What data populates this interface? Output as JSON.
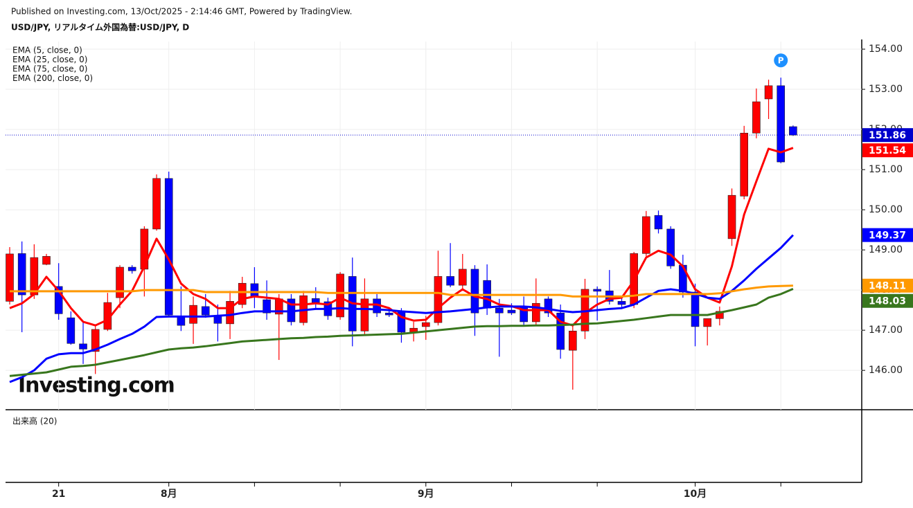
{
  "chart_data": {
    "type": "candlestick",
    "title": "USD/JPY, リアルタイム外国為替:USD/JPY, D",
    "subtitle": "Published on Investing.com, 13/Oct/2025 - 2:14:46 GMT, Powered by TradingView.",
    "volume_label": "出来高 (20)",
    "logo": "Investing.com",
    "annotations": [
      "P"
    ],
    "categories": [
      null,
      null,
      null,
      null,
      "21",
      null,
      null,
      null,
      null,
      null,
      null,
      null,
      null,
      "8月",
      null,
      null,
      null,
      null,
      null,
      null,
      null,
      null,
      null,
      null,
      null,
      null,
      null,
      null,
      null,
      null,
      null,
      null,
      null,
      null,
      "9月",
      null,
      null,
      null,
      null,
      null,
      null,
      null,
      null,
      null,
      null,
      null,
      null,
      null,
      null,
      null,
      null,
      null,
      null,
      null,
      null,
      null,
      "10月",
      null,
      null,
      null,
      null,
      null,
      null,
      null,
      null
    ],
    "open": [
      147.72,
      148.91,
      147.88,
      148.64,
      148.09,
      147.31,
      146.66,
      146.47,
      147.02,
      147.81,
      148.57,
      148.52,
      149.52,
      150.78,
      147.34,
      147.17,
      147.59,
      147.36,
      147.16,
      147.64,
      148.16,
      147.76,
      147.4,
      147.78,
      147.19,
      147.79,
      147.71,
      147.33,
      148.34,
      146.98,
      147.78,
      147.43,
      147.47,
      146.95,
      147.09,
      147.19,
      148.34,
      148.12,
      148.52,
      148.24,
      147.55,
      147.5,
      147.59,
      147.21,
      147.78,
      147.43,
      146.5,
      146.98,
      148.02,
      147.98,
      147.72,
      147.64,
      148.91,
      149.86,
      149.52,
      148.62,
      147.95,
      147.09,
      147.29,
      149.28,
      150.34,
      151.91,
      152.76,
      153.09,
      152.07
    ],
    "high": [
      149.07,
      149.21,
      149.14,
      148.9,
      148.67,
      147.47,
      147.21,
      147.12,
      147.93,
      148.62,
      148.62,
      149.59,
      150.88,
      150.95,
      148.09,
      147.84,
      147.9,
      147.64,
      147.98,
      148.33,
      148.57,
      148.24,
      147.9,
      147.9,
      147.98,
      148.07,
      147.81,
      148.45,
      148.81,
      148.29,
      147.9,
      147.52,
      147.55,
      147.21,
      147.36,
      148.98,
      149.17,
      148.9,
      148.62,
      148.64,
      147.78,
      147.67,
      147.84,
      148.29,
      147.84,
      147.64,
      147.12,
      148.28,
      148.09,
      148.5,
      147.84,
      148.95,
      149.97,
      149.98,
      149.59,
      148.88,
      148.16,
      147.26,
      147.59,
      150.53,
      152.09,
      153.02,
      153.24,
      153.29,
      152.1
    ],
    "low": [
      147.64,
      146.95,
      147.78,
      148.62,
      147.26,
      146.64,
      146.16,
      145.91,
      146.98,
      147.55,
      148.41,
      147.84,
      149.48,
      147.33,
      146.98,
      146.66,
      147.31,
      146.72,
      146.78,
      147.55,
      147.55,
      147.26,
      146.26,
      147.12,
      147.12,
      147.55,
      147.26,
      147.26,
      146.6,
      146.86,
      147.33,
      147.33,
      146.69,
      146.72,
      146.76,
      147.12,
      148.07,
      147.98,
      146.86,
      147.38,
      146.34,
      147.38,
      147.12,
      147.12,
      147.33,
      146.29,
      145.52,
      146.78,
      147.24,
      147.64,
      147.55,
      147.55,
      148.84,
      149.41,
      148.53,
      147.81,
      146.6,
      146.62,
      147.12,
      149.1,
      150.26,
      151.78,
      152.26,
      151.16,
      151.84
    ],
    "close": [
      148.9,
      147.88,
      148.81,
      148.84,
      147.41,
      146.67,
      146.53,
      147.02,
      147.69,
      148.57,
      148.48,
      149.52,
      150.78,
      147.38,
      147.12,
      147.62,
      147.38,
      147.17,
      147.72,
      148.17,
      147.84,
      147.43,
      147.78,
      147.21,
      147.86,
      147.69,
      147.36,
      148.4,
      146.98,
      147.78,
      147.43,
      147.38,
      146.95,
      147.05,
      147.19,
      148.34,
      148.12,
      148.52,
      147.43,
      147.55,
      147.43,
      147.43,
      147.21,
      147.67,
      147.43,
      146.52,
      146.98,
      148.02,
      147.97,
      147.72,
      147.64,
      148.91,
      149.83,
      149.52,
      148.6,
      147.95,
      147.09,
      147.29,
      147.47,
      150.36,
      151.91,
      152.69,
      153.09,
      151.19,
      151.86
    ],
    "up_color": "#ff0000",
    "down_color": "#0000ff",
    "series": [
      {
        "name": "EMA (5, close, 0)",
        "color": "#ff0000",
        "values": [
          147.55,
          147.67,
          147.9,
          148.33,
          147.98,
          147.55,
          147.21,
          147.12,
          147.26,
          147.64,
          147.98,
          148.59,
          149.28,
          148.76,
          148.16,
          147.9,
          147.78,
          147.55,
          147.55,
          147.78,
          147.84,
          147.81,
          147.78,
          147.64,
          147.64,
          147.67,
          147.64,
          147.81,
          147.67,
          147.64,
          147.64,
          147.55,
          147.33,
          147.24,
          147.26,
          147.55,
          147.81,
          148.02,
          147.84,
          147.78,
          147.64,
          147.6,
          147.5,
          147.5,
          147.5,
          147.21,
          147.12,
          147.43,
          147.64,
          147.78,
          147.81,
          148.24,
          148.81,
          148.98,
          148.88,
          148.59,
          148.02,
          147.81,
          147.69,
          148.59,
          149.88,
          150.71,
          151.52,
          151.43,
          151.54
        ]
      },
      {
        "name": "EMA (25, close, 0)",
        "color": "#0000ff",
        "values": [
          145.71,
          145.83,
          146.0,
          146.29,
          146.4,
          146.43,
          146.43,
          146.52,
          146.64,
          146.78,
          146.91,
          147.09,
          147.33,
          147.34,
          147.34,
          147.34,
          147.34,
          147.36,
          147.38,
          147.43,
          147.47,
          147.47,
          147.47,
          147.47,
          147.5,
          147.53,
          147.53,
          147.55,
          147.53,
          147.53,
          147.52,
          147.5,
          147.47,
          147.45,
          147.43,
          147.45,
          147.47,
          147.5,
          147.53,
          147.57,
          147.59,
          147.59,
          147.59,
          147.57,
          147.53,
          147.48,
          147.45,
          147.47,
          147.5,
          147.53,
          147.55,
          147.64,
          147.81,
          147.98,
          148.02,
          147.98,
          147.91,
          147.81,
          147.78,
          147.98,
          148.24,
          148.53,
          148.79,
          149.05,
          149.37
        ]
      },
      {
        "name": "EMA (75, close, 0)",
        "color": "#ff9900",
        "values": [
          147.97,
          147.97,
          147.97,
          147.97,
          147.97,
          147.97,
          147.97,
          147.97,
          147.97,
          147.97,
          147.97,
          148.0,
          148.0,
          148.0,
          148.0,
          148.0,
          147.95,
          147.95,
          147.95,
          147.95,
          147.95,
          147.95,
          147.95,
          147.95,
          147.95,
          147.95,
          147.93,
          147.93,
          147.93,
          147.93,
          147.93,
          147.93,
          147.93,
          147.93,
          147.93,
          147.93,
          147.88,
          147.88,
          147.88,
          147.88,
          147.88,
          147.88,
          147.88,
          147.88,
          147.88,
          147.88,
          147.84,
          147.84,
          147.84,
          147.84,
          147.84,
          147.86,
          147.9,
          147.9,
          147.9,
          147.9,
          147.9,
          147.9,
          147.92,
          147.97,
          148.02,
          148.06,
          148.09,
          148.1,
          148.11
        ]
      },
      {
        "name": "EMA (200, close, 0)",
        "color": "#38761d",
        "values": [
          145.86,
          145.89,
          145.92,
          145.95,
          146.02,
          146.09,
          146.11,
          146.14,
          146.2,
          146.26,
          146.32,
          146.38,
          146.45,
          146.52,
          146.55,
          146.57,
          146.6,
          146.64,
          146.68,
          146.72,
          146.74,
          146.76,
          146.78,
          146.8,
          146.81,
          146.83,
          146.84,
          146.86,
          146.87,
          146.88,
          146.89,
          146.9,
          146.91,
          146.94,
          146.97,
          147.0,
          147.03,
          147.06,
          147.09,
          147.1,
          147.1,
          147.11,
          147.11,
          147.12,
          147.12,
          147.13,
          147.14,
          147.16,
          147.17,
          147.2,
          147.23,
          147.26,
          147.3,
          147.34,
          147.38,
          147.38,
          147.38,
          147.38,
          147.44,
          147.5,
          147.57,
          147.64,
          147.81,
          147.9,
          148.03
        ]
      }
    ],
    "ylim": [
      145.02,
      154.19
    ],
    "yticks": [
      {
        "value": 146,
        "label": "146.00"
      },
      {
        "value": 147,
        "label": "147.00"
      },
      {
        "value": 148,
        "label": "148.00"
      },
      {
        "value": 149,
        "label": "149.00"
      },
      {
        "value": 150,
        "label": "150.00"
      },
      {
        "value": 151,
        "label": "151.00"
      },
      {
        "value": 152,
        "label": "152.00"
      },
      {
        "value": 153,
        "label": "153.00"
      },
      {
        "value": 154,
        "label": "154.00"
      }
    ],
    "grid": true,
    "price_box_color": "#0000cc"
  }
}
